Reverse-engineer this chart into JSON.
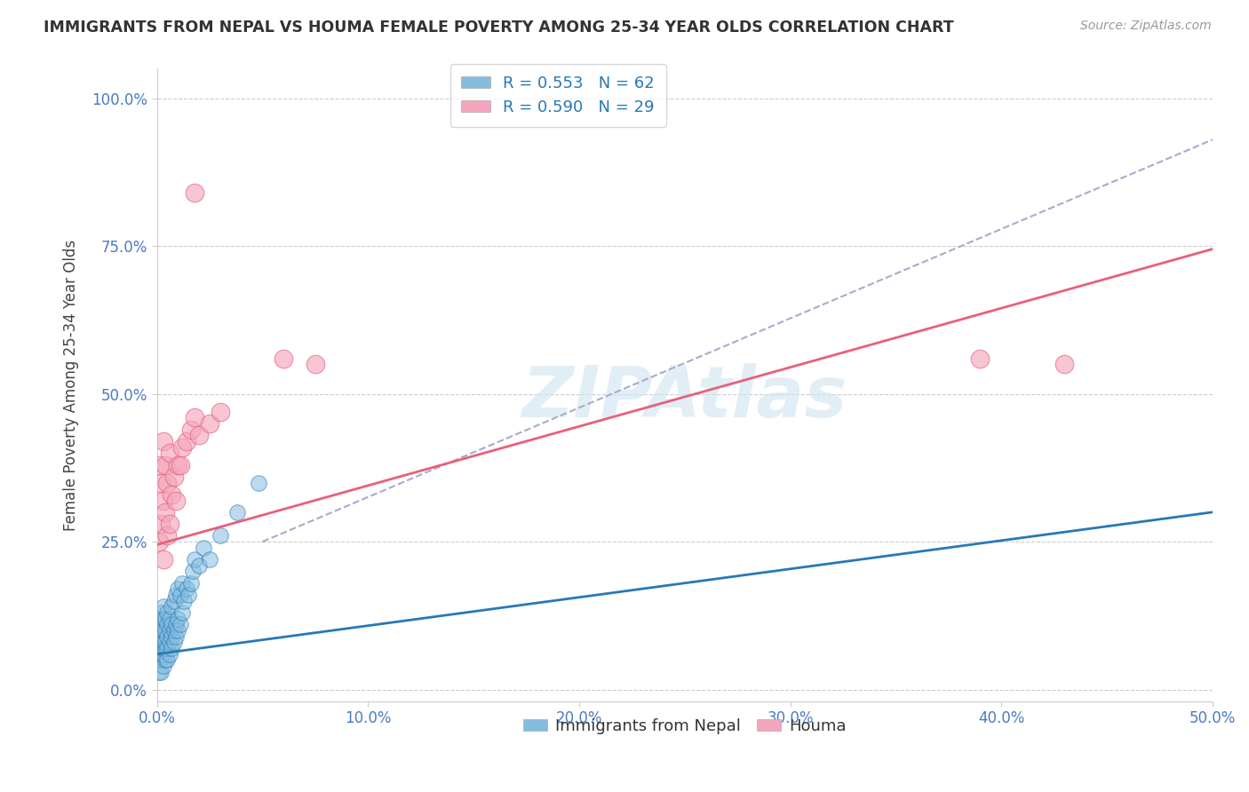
{
  "title": "IMMIGRANTS FROM NEPAL VS HOUMA FEMALE POVERTY AMONG 25-34 YEAR OLDS CORRELATION CHART",
  "source": "Source: ZipAtlas.com",
  "ylabel": "Female Poverty Among 25-34 Year Olds",
  "xlim": [
    0.0,
    0.5
  ],
  "ylim": [
    -0.02,
    1.05
  ],
  "xticks": [
    0.0,
    0.1,
    0.2,
    0.3,
    0.4,
    0.5
  ],
  "xticklabels": [
    "0.0%",
    "10.0%",
    "20.0%",
    "30.0%",
    "40.0%",
    "50.0%"
  ],
  "yticks": [
    0.0,
    0.25,
    0.5,
    0.75,
    1.0
  ],
  "yticklabels": [
    "0.0%",
    "25.0%",
    "50.0%",
    "75.0%",
    "100.0%"
  ],
  "legend_label1": "R = 0.553   N = 62",
  "legend_label2": "R = 0.590   N = 29",
  "legend_series1": "Immigrants from Nepal",
  "legend_series2": "Houma",
  "color_blue": "#85bde0",
  "color_pink": "#f4a6bc",
  "color_blue_line": "#2878b5",
  "color_pink_line": "#e8607a",
  "color_dashed": "#aaaacc",
  "watermark": "ZIPAtlas",
  "nepal_x": [
    0.001,
    0.001,
    0.001,
    0.001,
    0.001,
    0.002,
    0.002,
    0.002,
    0.002,
    0.002,
    0.002,
    0.002,
    0.003,
    0.003,
    0.003,
    0.003,
    0.003,
    0.003,
    0.003,
    0.004,
    0.004,
    0.004,
    0.004,
    0.004,
    0.005,
    0.005,
    0.005,
    0.005,
    0.005,
    0.006,
    0.006,
    0.006,
    0.006,
    0.007,
    0.007,
    0.007,
    0.007,
    0.008,
    0.008,
    0.008,
    0.009,
    0.009,
    0.009,
    0.01,
    0.01,
    0.01,
    0.011,
    0.011,
    0.012,
    0.012,
    0.013,
    0.014,
    0.015,
    0.016,
    0.017,
    0.018,
    0.02,
    0.022,
    0.025,
    0.03,
    0.038,
    0.048
  ],
  "nepal_y": [
    0.03,
    0.05,
    0.06,
    0.08,
    0.1,
    0.03,
    0.05,
    0.06,
    0.07,
    0.09,
    0.11,
    0.13,
    0.04,
    0.06,
    0.07,
    0.08,
    0.1,
    0.12,
    0.14,
    0.05,
    0.07,
    0.08,
    0.1,
    0.12,
    0.05,
    0.07,
    0.09,
    0.11,
    0.13,
    0.06,
    0.08,
    0.1,
    0.12,
    0.07,
    0.09,
    0.11,
    0.14,
    0.08,
    0.1,
    0.15,
    0.09,
    0.11,
    0.16,
    0.1,
    0.12,
    0.17,
    0.11,
    0.16,
    0.13,
    0.18,
    0.15,
    0.17,
    0.16,
    0.18,
    0.2,
    0.22,
    0.21,
    0.24,
    0.22,
    0.26,
    0.3,
    0.35
  ],
  "houma_x": [
    0.001,
    0.001,
    0.002,
    0.002,
    0.003,
    0.003,
    0.003,
    0.004,
    0.004,
    0.005,
    0.005,
    0.006,
    0.006,
    0.007,
    0.008,
    0.009,
    0.01,
    0.011,
    0.012,
    0.014,
    0.016,
    0.018,
    0.02,
    0.025,
    0.03,
    0.06,
    0.075,
    0.39,
    0.43
  ],
  "houma_y": [
    0.25,
    0.38,
    0.28,
    0.35,
    0.22,
    0.32,
    0.42,
    0.3,
    0.38,
    0.26,
    0.35,
    0.28,
    0.4,
    0.33,
    0.36,
    0.32,
    0.38,
    0.38,
    0.41,
    0.42,
    0.44,
    0.46,
    0.43,
    0.45,
    0.47,
    0.56,
    0.55,
    0.56,
    0.55
  ],
  "nepal_line_x": [
    0.0,
    0.5
  ],
  "nepal_line_y": [
    0.06,
    0.3
  ],
  "houma_line_x": [
    0.0,
    0.5
  ],
  "houma_line_y": [
    0.245,
    0.745
  ],
  "dashed_line_x": [
    0.05,
    0.5
  ],
  "dashed_line_y": [
    0.25,
    0.93
  ],
  "houma_outlier_x": [
    0.018
  ],
  "houma_outlier_y": [
    0.84
  ]
}
